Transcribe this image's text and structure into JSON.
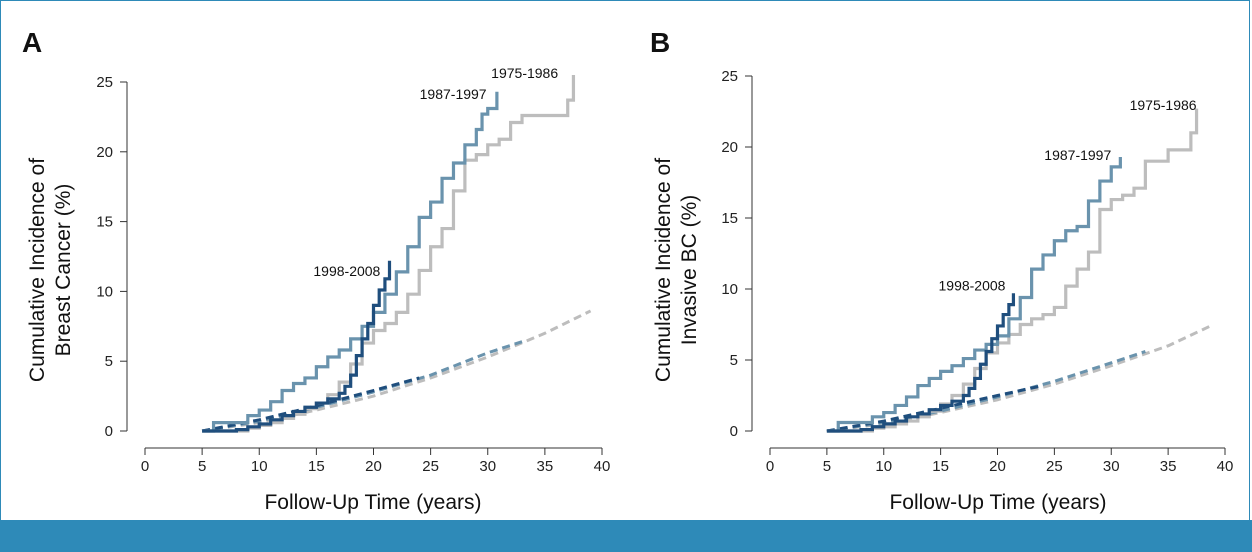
{
  "colors": {
    "frame": "#2e8ab8",
    "band": "#2e8ab8",
    "series_1975_1986": "#bdbdbd",
    "series_1987_1997": "#6a93ad",
    "series_1998_2008": "#1f4e7d"
  },
  "chart_data": [
    {
      "panel": "A",
      "type": "line",
      "xlabel": "Follow-Up Time (years)",
      "ylabel_lines": [
        "Cumulative Incidence of",
        "Breast Cancer (%)"
      ],
      "xlim": [
        0,
        40
      ],
      "ylim": [
        0,
        25
      ],
      "xticks": [
        0,
        5,
        10,
        15,
        20,
        25,
        30,
        35,
        40
      ],
      "yticks": [
        0,
        5,
        10,
        15,
        20,
        25
      ],
      "grid": false,
      "series": [
        {
          "name": "1975-1986",
          "style": "step",
          "color": "#bdbdbd",
          "x": [
            5,
            8,
            9,
            10,
            11,
            12,
            13,
            14,
            15,
            16,
            17,
            18,
            19,
            20,
            21,
            22,
            23,
            24,
            25,
            26,
            27,
            28,
            29,
            30,
            31,
            32,
            33,
            34,
            35,
            36,
            37,
            37.5
          ],
          "y": [
            0,
            0,
            0.2,
            0.4,
            0.6,
            0.9,
            1.2,
            1.6,
            2.0,
            2.6,
            3.5,
            4.8,
            6.3,
            7.2,
            7.7,
            8.5,
            9.8,
            11.5,
            13.2,
            14.5,
            17.2,
            19.4,
            19.8,
            20.5,
            20.9,
            22.1,
            22.6,
            22.6,
            22.6,
            22.6,
            23.7,
            25.5
          ]
        },
        {
          "name": "1987-1997",
          "style": "step",
          "color": "#6a93ad",
          "x": [
            5,
            6,
            8,
            9,
            10,
            11,
            12,
            13,
            14,
            15,
            16,
            17,
            18,
            19,
            20,
            21,
            22,
            23,
            24,
            25,
            26,
            27,
            28,
            29,
            29.5,
            30,
            30.8
          ],
          "y": [
            0,
            0.6,
            0.6,
            1.1,
            1.5,
            2.1,
            2.9,
            3.4,
            3.8,
            4.6,
            5.3,
            5.8,
            6.6,
            7.5,
            8.5,
            9.8,
            11.4,
            13.2,
            15.3,
            16.4,
            18.1,
            19.2,
            20.5,
            21.6,
            22.7,
            23.1,
            24.3
          ]
        },
        {
          "name": "1998-2008",
          "style": "step",
          "color": "#1f4e7d",
          "x": [
            5,
            8,
            9,
            10,
            11,
            12,
            13,
            14,
            15,
            16,
            17,
            17.5,
            18,
            18.5,
            19,
            19.5,
            20,
            20.5,
            21,
            21.4
          ],
          "y": [
            0,
            0.1,
            0.3,
            0.5,
            0.8,
            1.1,
            1.4,
            1.7,
            2.0,
            2.3,
            2.7,
            3.2,
            4.0,
            5.4,
            6.6,
            7.7,
            9.0,
            10.1,
            10.9,
            12.2
          ]
        },
        {
          "name": "1975-1986 expected",
          "style": "dashed",
          "color": "#bdbdbd",
          "x": [
            5,
            10,
            15,
            20,
            25,
            30,
            35,
            39
          ],
          "y": [
            0,
            0.6,
            1.5,
            2.5,
            3.8,
            5.3,
            7.0,
            8.6
          ]
        },
        {
          "name": "1987-1997 expected",
          "style": "dashed",
          "color": "#6a93ad",
          "x": [
            5,
            10,
            15,
            20,
            25,
            30,
            33
          ],
          "y": [
            0,
            0.7,
            1.7,
            2.8,
            4.0,
            5.6,
            6.4
          ]
        },
        {
          "name": "1998-2008 expected",
          "style": "dashed",
          "color": "#1f4e7d",
          "x": [
            5,
            10,
            15,
            20,
            24
          ],
          "y": [
            0,
            0.8,
            1.8,
            2.9,
            3.8
          ]
        }
      ],
      "annotations": [
        {
          "text": "1975-1986",
          "x": 30.3,
          "y": 25.3,
          "anchor": "start"
        },
        {
          "text": "1987-1997",
          "x": 29.9,
          "y": 23.8,
          "anchor": "end"
        },
        {
          "text": "1998-2008",
          "x": 20.6,
          "y": 11.1,
          "anchor": "end"
        }
      ]
    },
    {
      "panel": "B",
      "type": "line",
      "xlabel": "Follow-Up Time (years)",
      "ylabel_lines": [
        "Cumulative Incidence of",
        "Invasive BC (%)"
      ],
      "xlim": [
        0,
        40
      ],
      "ylim": [
        0,
        25
      ],
      "xticks": [
        0,
        5,
        10,
        15,
        20,
        25,
        30,
        35,
        40
      ],
      "yticks": [
        0,
        5,
        10,
        15,
        20,
        25
      ],
      "grid": false,
      "series": [
        {
          "name": "1975-1986",
          "style": "step",
          "color": "#bdbdbd",
          "x": [
            5,
            8,
            9,
            10,
            11,
            12,
            13,
            14,
            15,
            16,
            17,
            18,
            19,
            20,
            21,
            22,
            23,
            24,
            25,
            26,
            27,
            28,
            29,
            30,
            31,
            32,
            33,
            34,
            35,
            36,
            37,
            37.5
          ],
          "y": [
            0,
            0,
            0.2,
            0.3,
            0.5,
            0.7,
            1.0,
            1.4,
            1.9,
            2.5,
            3.3,
            4.4,
            5.5,
            6.2,
            6.8,
            7.5,
            7.9,
            8.2,
            8.7,
            10.2,
            11.4,
            12.6,
            15.6,
            16.3,
            16.6,
            17.1,
            19.0,
            19.0,
            19.8,
            19.8,
            21.0,
            22.7
          ]
        },
        {
          "name": "1987-1997",
          "style": "step",
          "color": "#6a93ad",
          "x": [
            5,
            6,
            8,
            9,
            10,
            11,
            12,
            13,
            14,
            15,
            16,
            17,
            18,
            19,
            20,
            21,
            22,
            23,
            24,
            25,
            26,
            27,
            28,
            29,
            30,
            30.8
          ],
          "y": [
            0,
            0.6,
            0.6,
            1.0,
            1.3,
            1.8,
            2.4,
            3.2,
            3.7,
            4.2,
            4.6,
            5.1,
            5.7,
            6.1,
            6.7,
            7.9,
            9.4,
            11.4,
            12.4,
            13.4,
            14.1,
            14.4,
            16.2,
            17.6,
            18.6,
            19.3
          ]
        },
        {
          "name": "1998-2008",
          "style": "step",
          "color": "#1f4e7d",
          "x": [
            5,
            8,
            9,
            10,
            11,
            12,
            13,
            14,
            15,
            16,
            17,
            17.5,
            18,
            18.5,
            19,
            19.5,
            20,
            20.5,
            21,
            21.4
          ],
          "y": [
            0,
            0.1,
            0.3,
            0.5,
            0.7,
            1.0,
            1.2,
            1.5,
            1.8,
            2.1,
            2.5,
            3.0,
            3.7,
            4.7,
            5.6,
            6.5,
            7.4,
            8.2,
            8.9,
            9.7
          ]
        },
        {
          "name": "1975-1986 expected",
          "style": "dashed",
          "color": "#bdbdbd",
          "x": [
            5,
            10,
            15,
            20,
            25,
            30,
            35,
            39
          ],
          "y": [
            0,
            0.5,
            1.3,
            2.2,
            3.3,
            4.6,
            6.0,
            7.5
          ]
        },
        {
          "name": "1987-1997 expected",
          "style": "dashed",
          "color": "#6a93ad",
          "x": [
            5,
            10,
            15,
            20,
            25,
            30,
            33
          ],
          "y": [
            0,
            0.6,
            1.4,
            2.4,
            3.5,
            4.8,
            5.6
          ]
        },
        {
          "name": "1998-2008 expected",
          "style": "dashed",
          "color": "#1f4e7d",
          "x": [
            5,
            10,
            15,
            20,
            24
          ],
          "y": [
            0,
            0.7,
            1.6,
            2.5,
            3.2
          ]
        }
      ],
      "annotations": [
        {
          "text": "1975-1986",
          "x": 37.5,
          "y": 22.6,
          "anchor": "end"
        },
        {
          "text": "1987-1997",
          "x": 30.0,
          "y": 19.1,
          "anchor": "end"
        },
        {
          "text": "1998-2008",
          "x": 20.7,
          "y": 9.9,
          "anchor": "end"
        }
      ]
    }
  ]
}
